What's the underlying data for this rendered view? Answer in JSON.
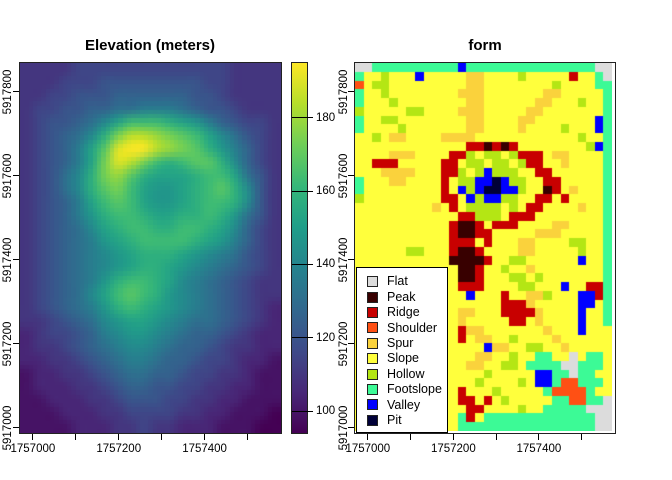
{
  "background": "#ffffff",
  "chart_data": [
    {
      "type": "heatmap",
      "title": "Elevation (meters)",
      "xlabel": "",
      "ylabel": "",
      "x_axis": {
        "range": [
          1756970,
          1757578
        ],
        "ticks": [
          1757000,
          1757100,
          1757200,
          1757300,
          1757400,
          1757500
        ],
        "tick_labels": [
          "1757000",
          "",
          "1757200",
          "",
          "1757400",
          ""
        ]
      },
      "y_axis": {
        "range": [
          5916988,
          5917869
        ],
        "ticks": [
          5917000,
          5917200,
          5917400,
          5917600,
          5917800
        ],
        "tick_labels": [
          "5917000",
          "5917200",
          "5917400",
          "5917600",
          "5917800"
        ]
      },
      "value_range": [
        94,
        195
      ],
      "colorbar": {
        "ticks": [
          100,
          120,
          140,
          160,
          180
        ],
        "palette_name": "viridis",
        "palette": [
          "#440154",
          "#482878",
          "#3e4a89",
          "#31688e",
          "#26828e",
          "#1f9e89",
          "#35b779",
          "#6ece58",
          "#b5de2b",
          "#fde725"
        ]
      },
      "grid_levels": "0123456789abcdefghij",
      "grid_note": "each char = elevation level, 0=94m .. j=195m, 20 cols x 28 rows, downsampled volcano DEM",
      "grid": [
        "33334444444444443333",
        "33344455555555443333",
        "33445556666665543333",
        "34455667788876554333",
        "3455679bdddcba865443",
        "345679cfhhgfedb97543",
        "34568beijjhgfeca8643",
        "34568bfihfdcdeec9643",
        "34579cfgecbbbcddb753",
        "34579cefdbaabcdec953",
        "34568bdedbaabcddc953",
        "34568acddcbbccdca753",
        "345679bcddccddcb9643",
        "345678abcddddcba8643",
        "3456789abcccba987543",
        "3456789abccba9876543",
        "345678acddcb98765433",
        "345679bdedca98765433",
        "345678acdcba98765432",
        "3345679abba987765432",
        "23445689aa9876654322",
        "23345678998766543322",
        "22334567887665443221",
        "12233456776654433211",
        "12223345665544332211",
        "11222334555443322111",
        "11122233444433221110",
        "11112223343322211100"
      ]
    },
    {
      "type": "heatmap",
      "categorical": true,
      "title": "form",
      "xlabel": "",
      "ylabel": "",
      "x_axis": {
        "range": [
          1756970,
          1757578
        ],
        "ticks": [
          1757000,
          1757100,
          1757200,
          1757300,
          1757400,
          1757500
        ],
        "tick_labels": [
          "1757000",
          "",
          "1757200",
          "",
          "1757400",
          ""
        ]
      },
      "y_axis": {
        "range": [
          5916988,
          5917869
        ],
        "ticks": [
          5917000,
          5917200,
          5917400,
          5917600,
          5917800
        ],
        "tick_labels": [
          "5917000",
          "5917200",
          "5917400",
          "5917600",
          "5917800"
        ]
      },
      "legend": [
        {
          "code": "f",
          "label": "Flat",
          "color": "#DCDCDC"
        },
        {
          "code": "p",
          "label": "Peak",
          "color": "#380000"
        },
        {
          "code": "r",
          "label": "Ridge",
          "color": "#C80000"
        },
        {
          "code": "h",
          "label": "Shoulder",
          "color": "#FF5014"
        },
        {
          "code": "u",
          "label": "Spur",
          "color": "#FAD23C"
        },
        {
          "code": "s",
          "label": "Slope",
          "color": "#FFFF3C"
        },
        {
          "code": "o",
          "label": "Hollow",
          "color": "#B4E614"
        },
        {
          "code": "t",
          "label": "Footslope",
          "color": "#3CFA96"
        },
        {
          "code": "v",
          "label": "Valley",
          "color": "#0000FF"
        },
        {
          "code": "i",
          "label": "Pit",
          "color": "#000038"
        }
      ],
      "grid_note": "each char = landform code (see legend), 30 cols x 42 rows, geomorphon map",
      "grid": [
        "ffttttttttttvtttttttttttttttff",
        "tssosssvsssssuussssosssssrsstf",
        "hsoosssssssssuussssssssosssstt",
        "tssossssssssuuusssssssuussssst",
        "tsssossssssssuussssssuusssosst",
        "osssssoossssuuusssssuussssssst",
        "tssoossssssssuussssuusssssssvt",
        "tssssosssssssuussssussssosssvt",
        "ssosuussssuuuussssssssssssosst",
        "sssssssssssssrrprprssssssssovt",
        "ssssuuussssrrosoosorrrsuusssst",
        "ssrrrsssssrrsoosoosorrssusssst",
        "sssuuuusssrrosovooossrrsssssst",
        "tsssuussssrsoovvivoossrrssssst",
        "tsssssssssrsvoviivvossprsussst",
        "osssssssssrrsvovvoossrrsrsssst",
        "sssssssssusrsoooososrrssssusst",
        "ssssssssssssrrooosrrrsssssssst",
        "sssssssssssrpprsrrrssssuusssst",
        "sssssssssssrpprrsssssuuussssst",
        "sssssssssssrrrsrsssuussssoosst",
        "ssssssoosssrpprssssuusssssosst",
        "ssssssssssspppprssoossssssvsst",
        "sssssssssssspprssossusssssssst",
        "sssssssssssspprsssoosossssssst",
        "ssssssssssssrrrssssoosssvssrrt",
        "sssssssssssssvsssrssuuosssvvrt",
        "sssssssssssssssssrrrusssssvvst",
        "ssssssssssssuusssrrrrussssvsst",
        "ssssssssssssusssssrrsussssvsst",
        "ssssssssssssruusssssssusssvsss",
        "ssssssssssssrsuussossssussssss",
        "sssssssssssssssvuussoossusssss",
        "ssssssssssssssuussossttssfstts",
        "sssssssssssssuussoosttttffttts",
        "sssssssssssssssosssssvvttfttss",
        "ssssssssssssssossssosvvthhttts",
        "ssssssssssssrsssosssssthhhhtss",
        "ssssssssssssrrsrsossssstthhttf",
        "sssssssssssssrrssssosstttttfff",
        "sssssssssssstrstttttttttttttff",
        "ssssssssssssttttttttttttttttff"
      ]
    }
  ]
}
